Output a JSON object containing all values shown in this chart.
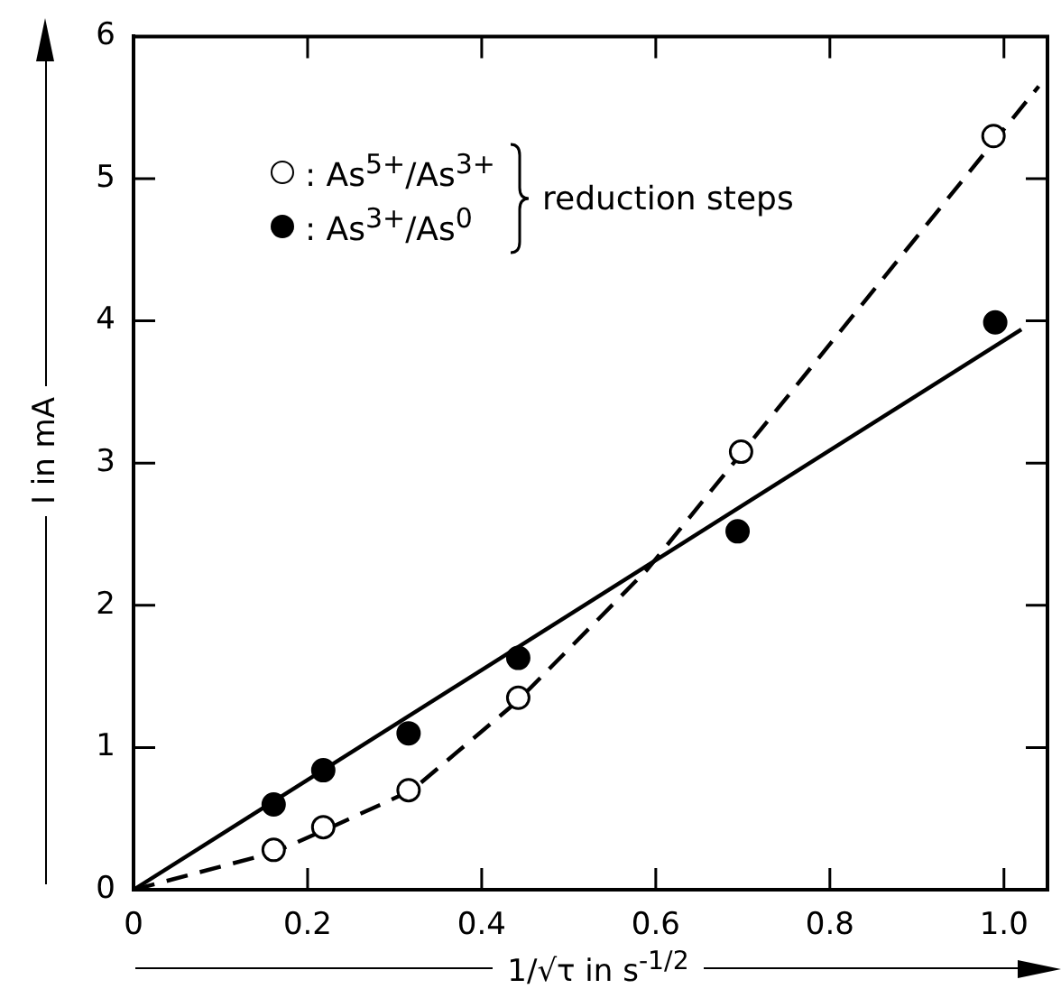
{
  "chart_data": {
    "type": "scatter",
    "xlabel": "1/√τ  in  s$^{-1/2}$",
    "ylabel": "I  in mA",
    "xlim": [
      0,
      1.05
    ],
    "ylim": [
      0,
      6
    ],
    "xticks": [
      0,
      0.2,
      0.4,
      0.6,
      {
        "value": 0.8,
        "label": "0.8"
      },
      {
        "value": 1,
        "label": "1.0"
      }
    ],
    "yticks": [
      0,
      1,
      2,
      3,
      4,
      5,
      6
    ],
    "grid": false,
    "legend": "top left",
    "marker": "circle",
    "annotations": [
      "reduction steps"
    ],
    "series": [
      {
        "name": ": As$^{5+}$/As$^{3+}$",
        "color": "#ffffff",
        "x": [
          0.161,
          0.218,
          0.316,
          0.442,
          0.698,
          0.988
        ],
        "values": [
          0.28,
          0.44,
          0.7,
          1.35,
          3.08,
          5.3
        ]
      },
      {
        "name": ": As$^{3+}$/As$^{0}$",
        "color": "#000000",
        "x": [
          0.161,
          0.218,
          0.316,
          0.442,
          0.694,
          0.99
        ],
        "values": [
          0.6,
          0.84,
          1.1,
          1.63,
          2.52,
          3.99
        ]
      },
      {
        "type": "line",
        "color": "#000000",
        "line_style": "dashed",
        "marker": "none",
        "x": [
          0,
          0.16,
          0.22,
          0.32,
          0.44,
          0.59,
          0.7,
          1.04
        ],
        "values": [
          0,
          0.26,
          0.42,
          0.7,
          1.32,
          2.25,
          3.08,
          5.65
        ]
      },
      {
        "type": "line",
        "color": "#000000",
        "line_style": "solid",
        "marker": "none",
        "x": [
          0,
          1.02
        ],
        "values": [
          0,
          3.94
        ]
      }
    ]
  }
}
